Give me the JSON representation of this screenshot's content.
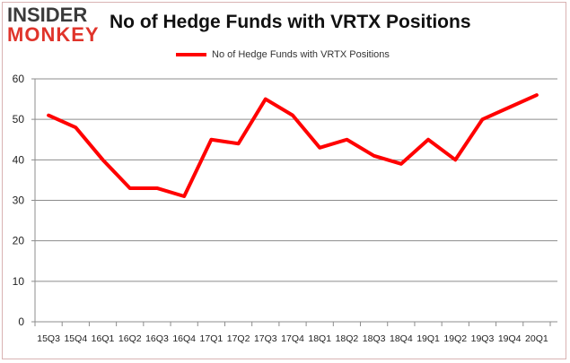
{
  "logo": {
    "line1": "INSIDER",
    "line2": "MONKEY"
  },
  "chart_data": {
    "type": "line",
    "title": "No of Hedge Funds with VRTX Positions",
    "categories": [
      "15Q3",
      "15Q4",
      "16Q1",
      "16Q2",
      "16Q3",
      "16Q4",
      "17Q1",
      "17Q2",
      "17Q3",
      "17Q4",
      "18Q1",
      "18Q2",
      "18Q3",
      "18Q4",
      "19Q1",
      "19Q2",
      "19Q3",
      "19Q4",
      "20Q1"
    ],
    "series": [
      {
        "name": "No of Hedge Funds with VRTX Positions",
        "color": "#ff0000",
        "values": [
          51,
          48,
          40,
          33,
          33,
          31,
          45,
          44,
          55,
          51,
          43,
          45,
          41,
          39,
          45,
          40,
          50,
          53,
          56
        ]
      }
    ],
    "ylim": [
      0,
      60
    ],
    "yticks": [
      0,
      10,
      20,
      30,
      40,
      50,
      60
    ],
    "grid": true,
    "legend": "top"
  }
}
